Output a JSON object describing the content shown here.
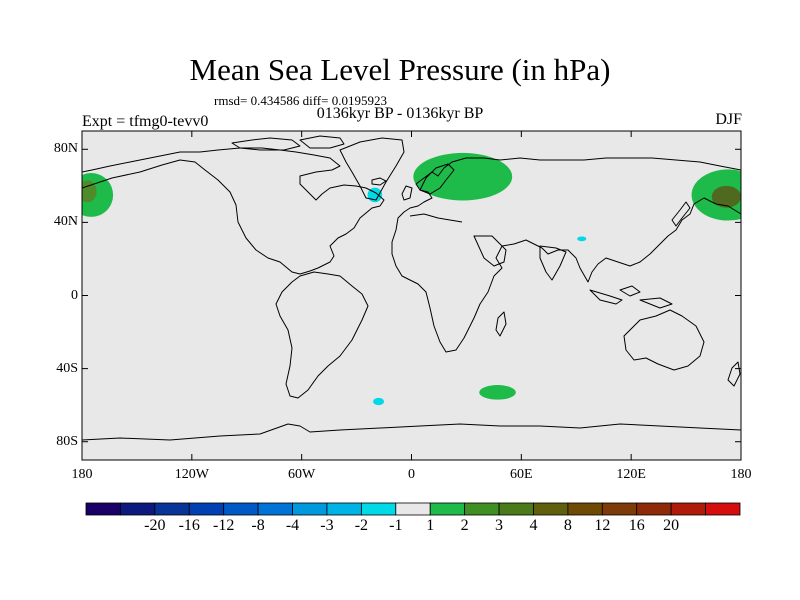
{
  "figure": {
    "title": "Mean Sea Level Pressure (in hPa)",
    "stats": "rmsd= 0.434586 diff= 0.0195923",
    "experiment": "Expt = tfmg0-tevv0",
    "period": "0136kyr BP - 0136kyr BP",
    "season": "DJF"
  },
  "map": {
    "projection": "cylindrical equidistant",
    "lon_range": [
      -180,
      180
    ],
    "lat_range": [
      -90,
      90
    ],
    "background_color": "#e8e8e8",
    "coastline_color": "#000000",
    "lat_ticks": [
      {
        "value": 80,
        "label": "80N"
      },
      {
        "value": 40,
        "label": "40N"
      },
      {
        "value": 0,
        "label": "0"
      },
      {
        "value": -40,
        "label": "40S"
      },
      {
        "value": -80,
        "label": "80S"
      }
    ],
    "lon_ticks": [
      {
        "value": -180,
        "label": "180"
      },
      {
        "value": -120,
        "label": "120W"
      },
      {
        "value": -60,
        "label": "60W"
      },
      {
        "value": 0,
        "label": "0"
      },
      {
        "value": 60,
        "label": "60E"
      },
      {
        "value": 120,
        "label": "120E"
      },
      {
        "value": 180,
        "label": "180"
      }
    ],
    "anomalies": [
      {
        "region": "north-pacific-east",
        "lon": -175,
        "lat": 55,
        "rlon": 12,
        "rlat": 12,
        "color": "#1fbb4a"
      },
      {
        "region": "north-pacific-east-core",
        "lon": -177,
        "lat": 57,
        "rlon": 5,
        "rlat": 6,
        "color": "#4f8a2b"
      },
      {
        "region": "north-pacific-west",
        "lon": 173,
        "lat": 55,
        "rlon": 20,
        "rlat": 14,
        "color": "#1fbb4a"
      },
      {
        "region": "north-pacific-west-core",
        "lon": 172,
        "lat": 54,
        "rlon": 8,
        "rlat": 6,
        "color": "#4f6a1f"
      },
      {
        "region": "europe",
        "lon": 28,
        "lat": 65,
        "rlon": 27,
        "rlat": 13,
        "color": "#1fbb4a"
      },
      {
        "region": "southern-indian-ocean",
        "lon": 47,
        "lat": -53,
        "rlon": 10,
        "rlat": 4,
        "color": "#1fbb4a"
      },
      {
        "region": "north-atlantic",
        "lon": -20,
        "lat": 55,
        "rlon": 4,
        "rlat": 4,
        "color": "#00d9e6"
      },
      {
        "region": "south-atlantic",
        "lon": -18,
        "lat": -58,
        "rlon": 3,
        "rlat": 2,
        "color": "#00d9e6"
      },
      {
        "region": "tibet",
        "lon": 93,
        "lat": 31,
        "rlon": 2.5,
        "rlat": 1.3,
        "color": "#00d9e6"
      }
    ]
  },
  "colorbar": {
    "colors": [
      "#1a0066",
      "#0c1a80",
      "#083399",
      "#0040b3",
      "#0059c6",
      "#0073d9",
      "#0099dd",
      "#00b3e6",
      "#00d9e6",
      "#e8e8e8",
      "#1fbb4a",
      "#3f8f23",
      "#4b7a1a",
      "#605f0c",
      "#6e4a05",
      "#7e3a08",
      "#8f2a08",
      "#b01a08",
      "#d60d0d"
    ],
    "labels": [
      "-20",
      "-16",
      "-12",
      "-8",
      "-4",
      "-3",
      "-2",
      "-1",
      "1",
      "2",
      "3",
      "4",
      "8",
      "12",
      "16",
      "20"
    ]
  }
}
